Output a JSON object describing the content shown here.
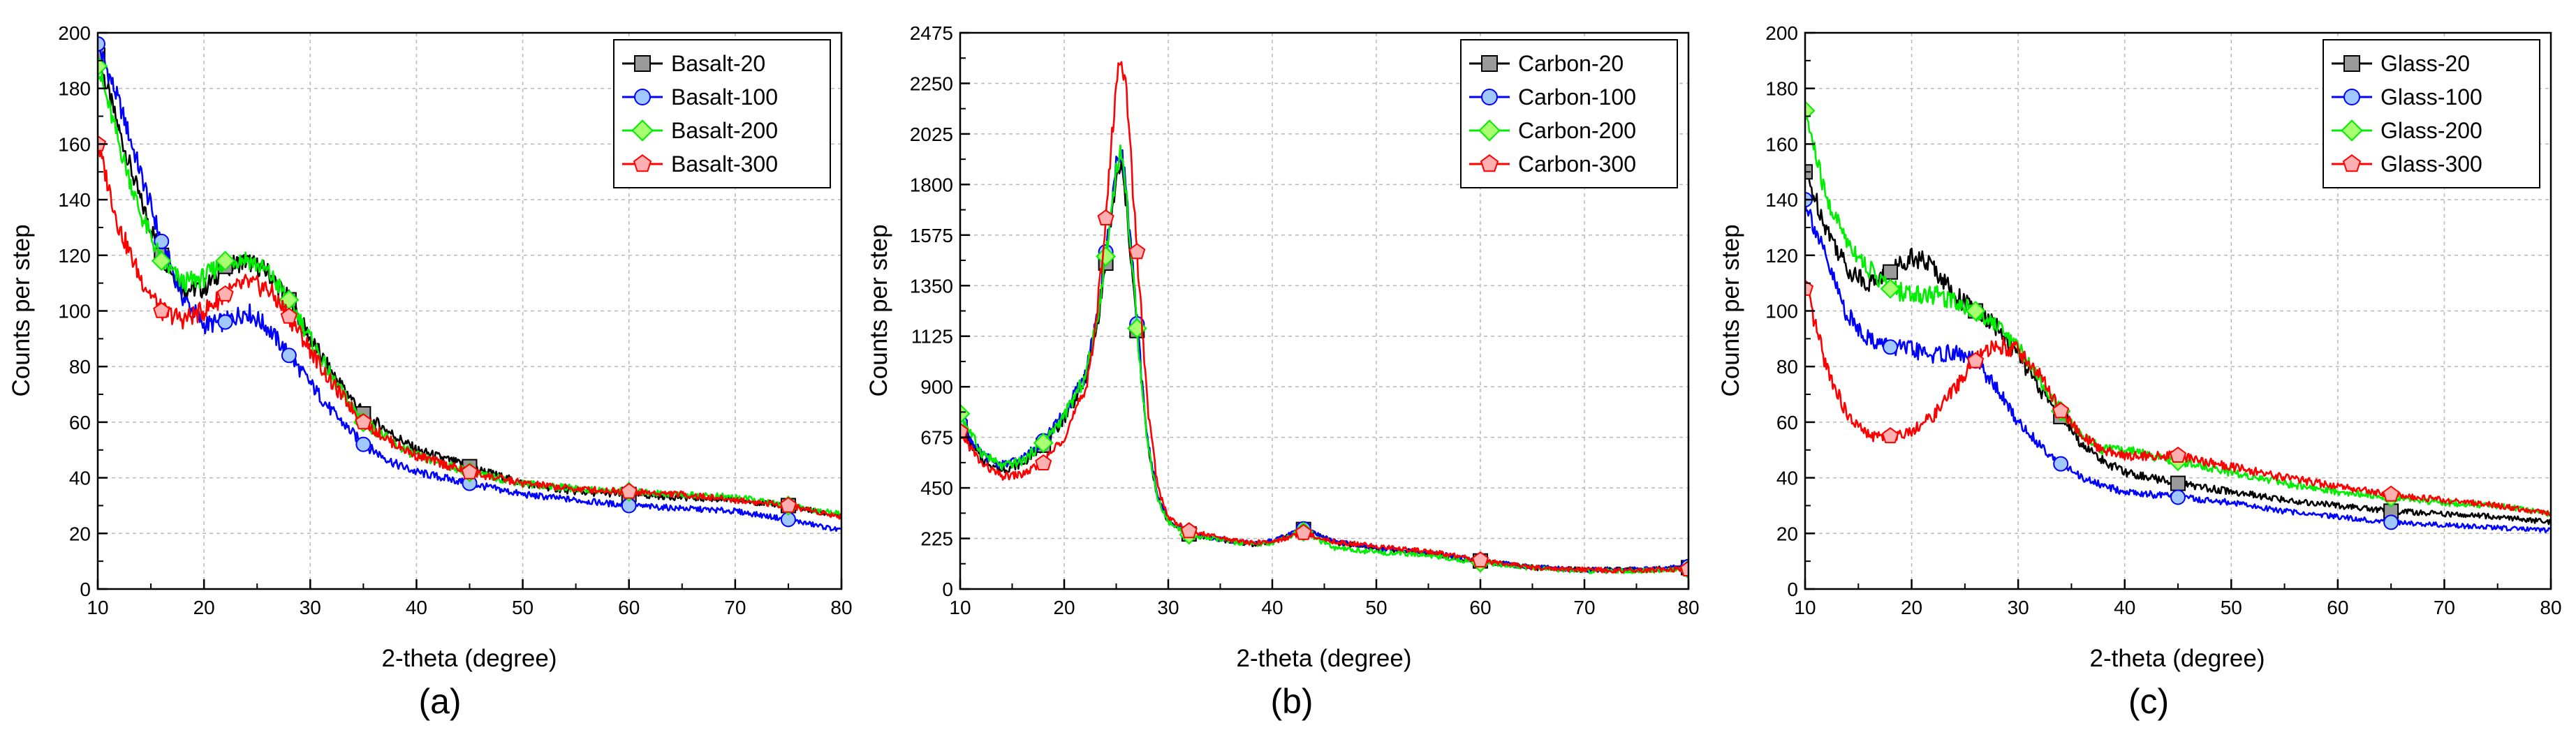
{
  "chart_data": [
    {
      "type": "line",
      "panel_label": "(a)",
      "xlabel": "2-theta (degree)",
      "ylabel": "Counts per step",
      "xlim": [
        10,
        80
      ],
      "ylim": [
        0,
        200
      ],
      "xticks": [
        10,
        20,
        30,
        40,
        50,
        60,
        70,
        80
      ],
      "yticks": [
        0,
        20,
        40,
        60,
        80,
        100,
        120,
        140,
        160,
        180,
        200
      ],
      "grid": true,
      "legend_position": "top-right",
      "series": [
        {
          "name": "Basalt-20",
          "color": "#000000",
          "marker": "square",
          "marker_color": "#9a9a9a",
          "x": [
            10,
            12,
            14,
            16,
            18,
            20,
            22,
            24,
            26,
            28,
            30,
            32,
            35,
            38,
            40,
            45,
            50,
            55,
            60,
            65,
            70,
            75,
            80
          ],
          "y": [
            192,
            165,
            140,
            120,
            108,
            108,
            116,
            118,
            114,
            104,
            90,
            78,
            63,
            55,
            50,
            44,
            38,
            35,
            34,
            33,
            32,
            30,
            26
          ]
        },
        {
          "name": "Basalt-100",
          "color": "#0000ff",
          "marker": "circle",
          "marker_color": "#a0c8ff",
          "x": [
            10,
            12,
            14,
            16,
            18,
            20,
            22,
            24,
            26,
            28,
            30,
            32,
            35,
            38,
            40,
            45,
            50,
            55,
            60,
            65,
            70,
            75,
            80
          ],
          "y": [
            196,
            175,
            150,
            125,
            105,
            95,
            96,
            100,
            94,
            84,
            74,
            64,
            52,
            45,
            42,
            38,
            34,
            32,
            30,
            29,
            28,
            25,
            21
          ]
        },
        {
          "name": "Basalt-200",
          "color": "#00ee00",
          "marker": "diamond",
          "marker_color": "#a8ff70",
          "x": [
            10,
            12,
            14,
            16,
            18,
            20,
            22,
            24,
            26,
            28,
            30,
            32,
            35,
            38,
            40,
            45,
            50,
            55,
            60,
            65,
            70,
            75,
            80
          ],
          "y": [
            188,
            160,
            135,
            118,
            110,
            112,
            118,
            119,
            114,
            104,
            90,
            76,
            60,
            52,
            48,
            42,
            38,
            36,
            35,
            34,
            33,
            30,
            27
          ]
        },
        {
          "name": "Basalt-300",
          "color": "#ff0000",
          "marker": "pentagon",
          "marker_color": "#ffb0b0",
          "x": [
            10,
            12,
            14,
            16,
            18,
            20,
            22,
            24,
            26,
            28,
            30,
            32,
            35,
            38,
            40,
            45,
            50,
            55,
            60,
            65,
            70,
            75,
            80
          ],
          "y": [
            160,
            130,
            112,
            100,
            97,
            100,
            106,
            110,
            108,
            98,
            86,
            74,
            60,
            52,
            48,
            42,
            38,
            36,
            35,
            34,
            32,
            30,
            26
          ]
        }
      ]
    },
    {
      "type": "line",
      "panel_label": "(b)",
      "xlabel": "2-theta (degree)",
      "ylabel": "Counts per step",
      "xlim": [
        10,
        80
      ],
      "ylim": [
        0,
        2475
      ],
      "xticks": [
        10,
        20,
        30,
        40,
        50,
        60,
        70,
        80
      ],
      "yticks": [
        0,
        225,
        450,
        675,
        900,
        1125,
        1350,
        1575,
        1800,
        2025,
        2250,
        2475
      ],
      "grid": true,
      "legend_position": "top-right",
      "series": [
        {
          "name": "Carbon-20",
          "color": "#000000",
          "marker": "square",
          "marker_color": "#9a9a9a",
          "x": [
            10,
            12,
            14,
            16,
            18,
            20,
            22,
            23,
            24,
            25,
            25.5,
            26,
            27,
            28,
            29,
            30,
            32,
            35,
            38,
            40,
            43,
            46,
            50,
            55,
            60,
            65,
            70,
            75,
            80
          ],
          "y": [
            720,
            580,
            530,
            560,
            640,
            760,
            930,
            1130,
            1450,
            1820,
            1880,
            1700,
            1150,
            650,
            400,
            300,
            245,
            220,
            200,
            210,
            265,
            210,
            180,
            160,
            125,
            95,
            85,
            85,
            95
          ]
        },
        {
          "name": "Carbon-100",
          "color": "#0000ff",
          "marker": "circle",
          "marker_color": "#a0c8ff",
          "x": [
            10,
            12,
            14,
            16,
            18,
            20,
            22,
            23,
            24,
            25,
            25.5,
            26,
            27,
            28,
            29,
            30,
            32,
            35,
            38,
            40,
            43,
            46,
            50,
            55,
            60,
            65,
            70,
            75,
            80
          ],
          "y": [
            740,
            600,
            550,
            580,
            660,
            780,
            950,
            1160,
            1500,
            1880,
            1960,
            1760,
            1180,
            660,
            410,
            305,
            248,
            222,
            202,
            212,
            268,
            212,
            182,
            162,
            126,
            96,
            86,
            86,
            100
          ]
        },
        {
          "name": "Carbon-200",
          "color": "#00ee00",
          "marker": "diamond",
          "marker_color": "#a8ff70",
          "x": [
            10,
            12,
            14,
            16,
            18,
            20,
            22,
            23,
            24,
            25,
            25.5,
            26,
            27,
            28,
            29,
            30,
            32,
            35,
            38,
            40,
            43,
            46,
            50,
            55,
            60,
            65,
            70,
            75,
            80
          ],
          "y": [
            780,
            610,
            545,
            570,
            650,
            770,
            940,
            1150,
            1480,
            1870,
            1950,
            1740,
            1160,
            650,
            400,
            298,
            242,
            218,
            198,
            205,
            255,
            180,
            165,
            150,
            118,
            92,
            80,
            80,
            88
          ]
        },
        {
          "name": "Carbon-300",
          "color": "#ff0000",
          "marker": "pentagon",
          "marker_color": "#ffb0b0",
          "x": [
            10,
            12,
            14,
            16,
            18,
            20,
            22,
            23,
            24,
            25,
            25.5,
            26,
            27,
            28,
            29,
            30,
            32,
            35,
            38,
            40,
            43,
            46,
            50,
            55,
            60,
            65,
            70,
            75,
            80
          ],
          "y": [
            700,
            560,
            500,
            510,
            560,
            680,
            880,
            1150,
            1650,
            2250,
            2380,
            2200,
            1500,
            820,
            450,
            320,
            258,
            228,
            205,
            210,
            250,
            210,
            190,
            168,
            128,
            95,
            85,
            82,
            88
          ]
        }
      ]
    },
    {
      "type": "line",
      "panel_label": "(c)",
      "xlabel": "2-theta (degree)",
      "ylabel": "Counts per step",
      "xlim": [
        10,
        80
      ],
      "ylim": [
        0,
        200
      ],
      "xticks": [
        10,
        20,
        30,
        40,
        50,
        60,
        70,
        80
      ],
      "yticks": [
        0,
        20,
        40,
        60,
        80,
        100,
        120,
        140,
        160,
        180,
        200
      ],
      "grid": true,
      "legend_position": "top-right",
      "series": [
        {
          "name": "Glass-20",
          "color": "#000000",
          "marker": "square",
          "marker_color": "#9a9a9a",
          "x": [
            10,
            12,
            14,
            16,
            18,
            20,
            22,
            24,
            26,
            28,
            30,
            32,
            34,
            36,
            38,
            40,
            45,
            50,
            55,
            60,
            65,
            70,
            75,
            80
          ],
          "y": [
            150,
            130,
            115,
            110,
            114,
            120,
            116,
            106,
            100,
            94,
            84,
            72,
            62,
            52,
            46,
            42,
            38,
            35,
            32,
            30,
            28,
            27,
            26,
            24
          ]
        },
        {
          "name": "Glass-100",
          "color": "#0000ff",
          "marker": "circle",
          "marker_color": "#a0c8ff",
          "x": [
            10,
            12,
            14,
            16,
            18,
            20,
            22,
            24,
            26,
            28,
            30,
            32,
            34,
            36,
            38,
            40,
            45,
            50,
            55,
            60,
            65,
            70,
            75,
            80
          ],
          "y": [
            140,
            118,
            98,
            90,
            87,
            86,
            84,
            85,
            82,
            72,
            60,
            52,
            45,
            40,
            37,
            35,
            33,
            31,
            28,
            26,
            24,
            23,
            22,
            21
          ]
        },
        {
          "name": "Glass-200",
          "color": "#00ee00",
          "marker": "diamond",
          "marker_color": "#a8ff70",
          "x": [
            10,
            12,
            14,
            16,
            18,
            20,
            22,
            24,
            26,
            28,
            30,
            32,
            34,
            36,
            38,
            40,
            45,
            50,
            55,
            60,
            65,
            70,
            75,
            80
          ],
          "y": [
            172,
            140,
            125,
            115,
            108,
            106,
            106,
            104,
            100,
            95,
            87,
            76,
            64,
            55,
            50,
            50,
            46,
            42,
            38,
            35,
            33,
            31,
            30,
            27
          ]
        },
        {
          "name": "Glass-300",
          "color": "#ff0000",
          "marker": "pentagon",
          "marker_color": "#ffb0b0",
          "x": [
            10,
            12,
            14,
            16,
            18,
            20,
            22,
            24,
            26,
            28,
            30,
            32,
            34,
            36,
            38,
            40,
            45,
            50,
            55,
            60,
            65,
            70,
            75,
            80
          ],
          "y": [
            108,
            80,
            62,
            55,
            55,
            57,
            62,
            72,
            82,
            88,
            86,
            77,
            64,
            55,
            50,
            48,
            48,
            44,
            40,
            37,
            34,
            32,
            30,
            27
          ]
        }
      ]
    }
  ]
}
